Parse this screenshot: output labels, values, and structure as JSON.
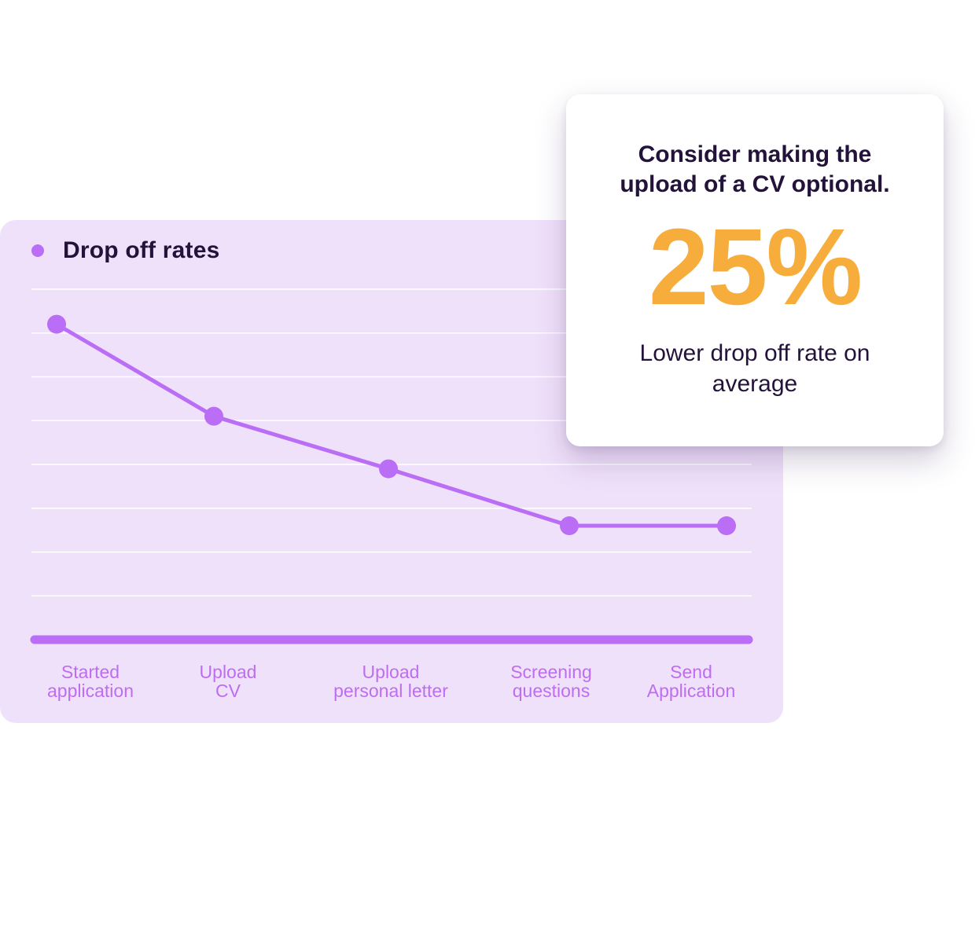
{
  "colors": {
    "card_background": "#f0e1fb",
    "series": "#b96ef5",
    "tick_label": "#be6df2",
    "heading_text": "#23133a",
    "stat": "#f6ad3b"
  },
  "chart_data": {
    "type": "line",
    "title": "",
    "xlabel": "",
    "ylabel": "",
    "grid": true,
    "y_ticks_shown": false,
    "legend": {
      "placement": "top-left",
      "entries": [
        "Drop off rates"
      ]
    },
    "categories": [
      "Started\napplication",
      "Upload\nCV",
      "Upload\npersonal letter",
      "Screening\nquestions",
      "Send\nApplication"
    ],
    "series": [
      {
        "name": "Drop off rates",
        "values": [
          7.2,
          5.1,
          3.9,
          2.6,
          2.6
        ]
      }
    ],
    "ylim": [
      0,
      8
    ]
  },
  "callout": {
    "heading": "Consider making the upload of a CV optional.",
    "stat": "25%",
    "caption": "Lower drop off rate on average"
  }
}
